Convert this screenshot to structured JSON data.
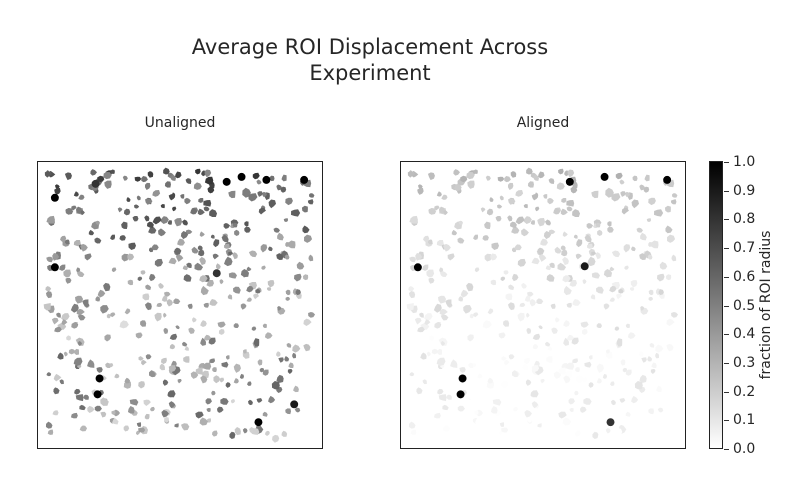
{
  "title_line1": "Average ROI Displacement Across",
  "title_line2": "Experiment",
  "chart_data": {
    "type": "heatmap",
    "panels": [
      {
        "title": "Unaligned"
      },
      {
        "title": "Aligned"
      }
    ],
    "colormap": {
      "low": "#ffffff",
      "high": "#000000"
    },
    "colorbar": {
      "label": "fraction of ROI radius",
      "range": [
        0.0,
        1.0
      ],
      "ticks": [
        "0.0",
        "0.1",
        "0.2",
        "0.3",
        "0.4",
        "0.5",
        "0.6",
        "0.7",
        "0.8",
        "0.9",
        "1.0"
      ]
    },
    "axes_ticks": false,
    "grid": false
  }
}
